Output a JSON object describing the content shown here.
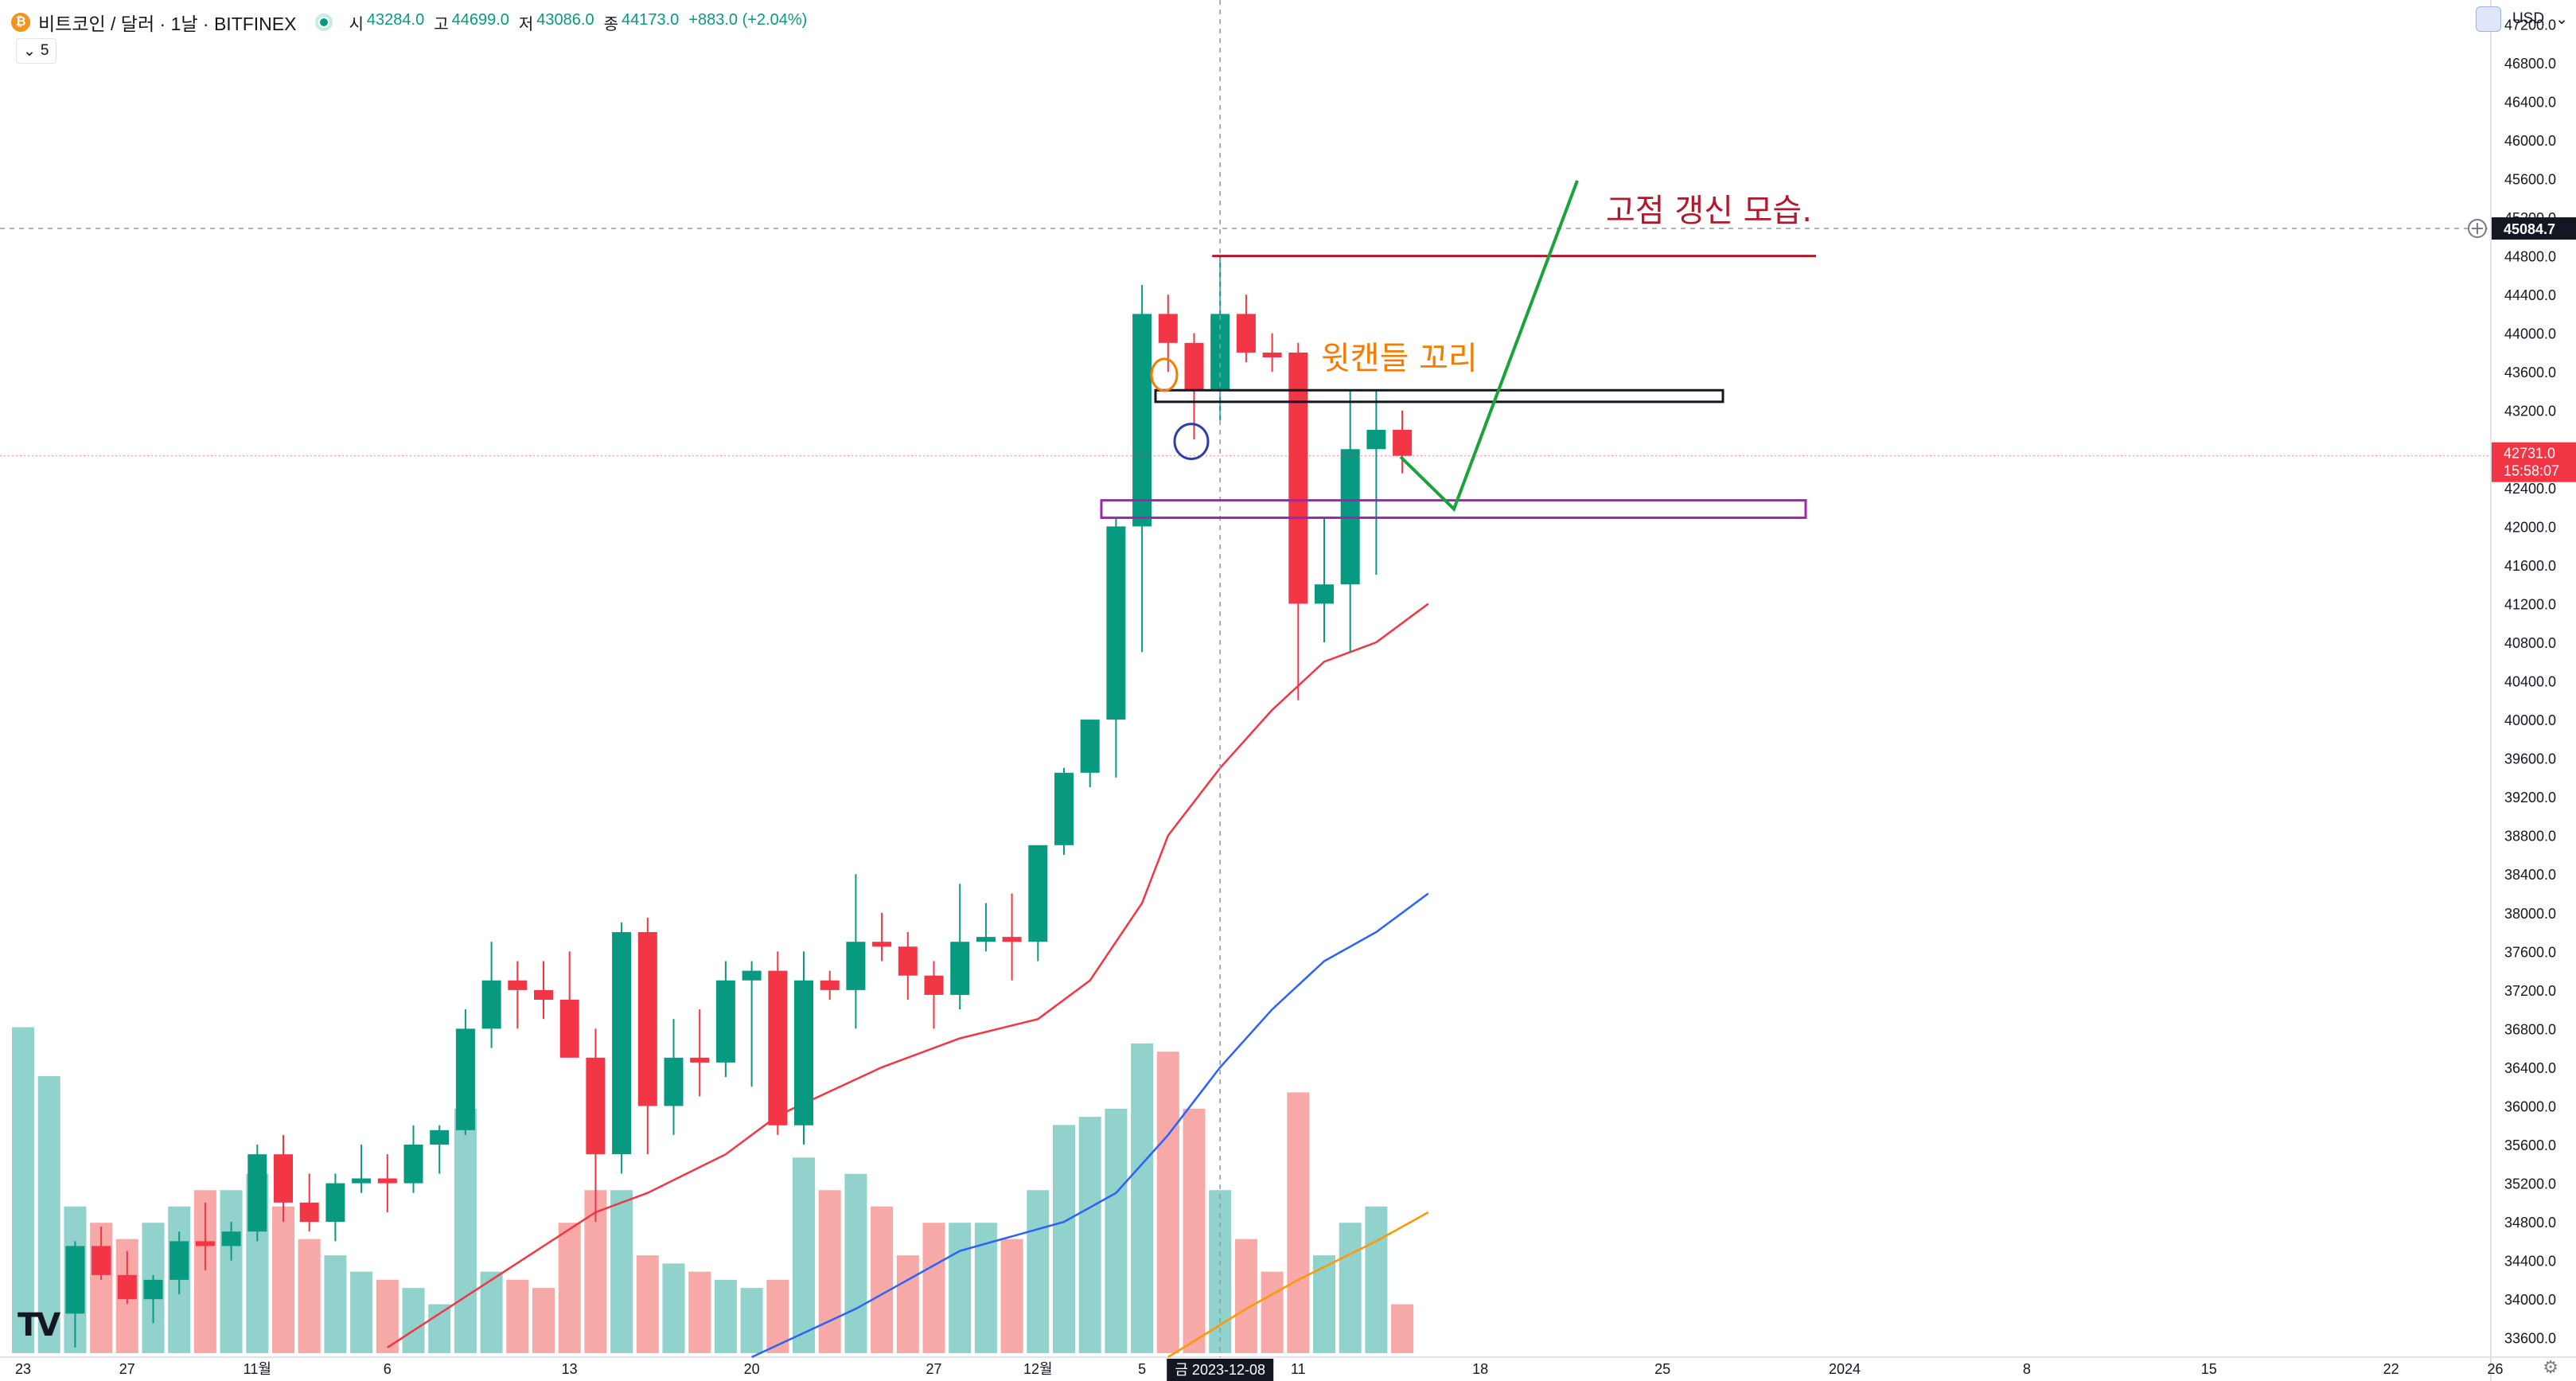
{
  "header": {
    "symbol": "비트코인 / 달러 · 1날 · BITFINEX",
    "coin_glyph": "₿",
    "ohlc": [
      {
        "label": "시",
        "value": "43284.0"
      },
      {
        "label": "고",
        "value": "44699.0"
      },
      {
        "label": "저",
        "value": "43086.0"
      },
      {
        "label": "종",
        "value": "44173.0"
      },
      {
        "label": "",
        "value": "+883.0 (+2.04%)"
      }
    ],
    "collapse_label": "5",
    "currency": "USD"
  },
  "colors": {
    "up": "#089981",
    "down": "#f23645",
    "vol_up": "#92d2cc",
    "vol_down": "#f7a9a7",
    "ma_red": "#f23645",
    "ma_blue": "#2962ff",
    "ma_orange": "#ff9800",
    "annot_darkred": "#b2182b",
    "annot_orange": "#f57c00",
    "annot_green": "#1aa33a",
    "annot_purple": "#9c27b0",
    "annot_blue": "#2f3fa8"
  },
  "chart_data": {
    "type": "candlestick",
    "y_ticks": [
      "47200.0",
      "46800.0",
      "46400.0",
      "46000.0",
      "45600.0",
      "45200.0",
      "44800.0",
      "44400.0",
      "44000.0",
      "43600.0",
      "43200.0",
      "42800.0",
      "42400.0",
      "42000.0",
      "41600.0",
      "41200.0",
      "40800.0",
      "40400.0",
      "40000.0",
      "39600.0",
      "39200.0",
      "38800.0",
      "38400.0",
      "38000.0",
      "37600.0",
      "37200.0",
      "36800.0",
      "36400.0",
      "36000.0",
      "35600.0",
      "35200.0",
      "34800.0",
      "34400.0",
      "34000.0",
      "33600.0"
    ],
    "ylim": [
      33400,
      47450
    ],
    "x_ticks": [
      {
        "i": 0,
        "label": "23"
      },
      {
        "i": 4,
        "label": "27"
      },
      {
        "i": 9,
        "label": "11월"
      },
      {
        "i": 14,
        "label": "6"
      },
      {
        "i": 21,
        "label": "13"
      },
      {
        "i": 28,
        "label": "20"
      },
      {
        "i": 35,
        "label": "27"
      },
      {
        "i": 39,
        "label": "12월"
      },
      {
        "i": 43,
        "label": "5"
      },
      {
        "i": 49,
        "label": "11"
      },
      {
        "i": 56,
        "label": "18"
      },
      {
        "i": 63,
        "label": "25"
      },
      {
        "i": 70,
        "label": "2024"
      },
      {
        "i": 77,
        "label": "8"
      },
      {
        "i": 84,
        "label": "15"
      },
      {
        "i": 91,
        "label": "22"
      },
      {
        "i": 95,
        "label": "26"
      }
    ],
    "crosshair": {
      "i": 46,
      "date_label": "금  2023-12-08",
      "price": 45084.7,
      "price_label": "45084.7"
    },
    "last_price": {
      "price": 42731.0,
      "label": "42731.0",
      "countdown": "15:58:07"
    },
    "candles": [
      [
        null,
        null,
        null,
        null
      ],
      [
        null,
        null,
        null,
        null
      ],
      [
        33850,
        34600,
        33500,
        34550
      ],
      [
        34550,
        34750,
        34200,
        34250
      ],
      [
        34250,
        34500,
        33950,
        34000
      ],
      [
        34000,
        34250,
        33750,
        34200
      ],
      [
        34200,
        34700,
        34050,
        34600
      ],
      [
        34600,
        35000,
        34300,
        34550
      ],
      [
        34550,
        34800,
        34400,
        34700
      ],
      [
        34700,
        35600,
        34600,
        35500
      ],
      [
        35500,
        35700,
        34800,
        35000
      ],
      [
        35000,
        35300,
        34700,
        34800
      ],
      [
        34800,
        35300,
        34600,
        35200
      ],
      [
        35200,
        35600,
        35100,
        35250
      ],
      [
        35250,
        35500,
        34900,
        35200
      ],
      [
        35200,
        35800,
        35100,
        35600
      ],
      [
        35600,
        35800,
        35300,
        35750
      ],
      [
        35750,
        37000,
        35700,
        36800
      ],
      [
        36800,
        37700,
        36600,
        37300
      ],
      [
        37300,
        37500,
        36800,
        37200
      ],
      [
        37200,
        37500,
        36900,
        37100
      ],
      [
        37100,
        37600,
        36500,
        36500
      ],
      [
        36500,
        36800,
        34800,
        35500
      ],
      [
        35500,
        37900,
        35300,
        37800
      ],
      [
        37800,
        37950,
        35500,
        36000
      ],
      [
        36000,
        36900,
        35700,
        36500
      ],
      [
        36500,
        37000,
        36100,
        36450
      ],
      [
        36450,
        37500,
        36300,
        37300
      ],
      [
        37300,
        37500,
        36200,
        37400
      ],
      [
        37400,
        37600,
        35700,
        35800
      ],
      [
        35800,
        37600,
        35600,
        37300
      ],
      [
        37300,
        37400,
        37100,
        37200
      ],
      [
        37200,
        38400,
        36800,
        37700
      ],
      [
        37700,
        38000,
        37500,
        37650
      ],
      [
        37650,
        37800,
        37100,
        37350
      ],
      [
        37350,
        37500,
        36800,
        37150
      ],
      [
        37150,
        38300,
        37000,
        37700
      ],
      [
        37700,
        38100,
        37600,
        37750
      ],
      [
        37750,
        38200,
        37300,
        37700
      ],
      [
        37700,
        38700,
        37500,
        38700
      ],
      [
        38700,
        39500,
        38600,
        39450
      ],
      [
        39450,
        40000,
        39300,
        40000
      ],
      [
        40000,
        42100,
        39400,
        42000
      ],
      [
        42000,
        44500,
        40700,
        44200
      ],
      [
        44200,
        44400,
        43600,
        43900
      ],
      [
        43900,
        44000,
        42900,
        43400
      ],
      [
        43400,
        44800,
        43100,
        44200
      ],
      [
        44200,
        44400,
        43700,
        43800
      ],
      [
        43800,
        44000,
        43600,
        43750
      ],
      [
        43800,
        43900,
        40200,
        41200
      ],
      [
        41200,
        42100,
        40800,
        41400
      ],
      [
        41400,
        43400,
        40700,
        42800
      ],
      [
        42800,
        43400,
        41500,
        43000
      ],
      [
        43000,
        43200,
        42550,
        42731
      ]
    ],
    "volumes": [
      2000,
      1700,
      900,
      800,
      700,
      800,
      900,
      1000,
      1000,
      1100,
      900,
      700,
      600,
      500,
      450,
      400,
      300,
      1500,
      500,
      450,
      400,
      800,
      1000,
      1000,
      600,
      550,
      500,
      450,
      400,
      450,
      1200,
      1000,
      1100,
      900,
      600,
      800,
      800,
      800,
      700,
      1000,
      1400,
      1450,
      1500,
      1900,
      1850,
      1500,
      1000,
      700,
      500,
      1600,
      600,
      800,
      900,
      300
    ],
    "volume_scale_max": 2100,
    "ma_red": [
      [
        14,
        33500
      ],
      [
        18,
        34200
      ],
      [
        22,
        34900
      ],
      [
        24,
        35100
      ],
      [
        27,
        35500
      ],
      [
        29,
        35900
      ],
      [
        33,
        36400
      ],
      [
        36,
        36700
      ],
      [
        39,
        36900
      ],
      [
        41,
        37300
      ],
      [
        43,
        38100
      ],
      [
        44,
        38800
      ],
      [
        46,
        39500
      ],
      [
        48,
        40100
      ],
      [
        50,
        40600
      ],
      [
        52,
        40800
      ],
      [
        54,
        41200
      ]
    ],
    "ma_blue": [
      [
        28,
        33400
      ],
      [
        32,
        33900
      ],
      [
        36,
        34500
      ],
      [
        40,
        34800
      ],
      [
        42,
        35100
      ],
      [
        44,
        35700
      ],
      [
        46,
        36400
      ],
      [
        48,
        37000
      ],
      [
        50,
        37500
      ],
      [
        52,
        37800
      ],
      [
        54,
        38200
      ]
    ],
    "ma_orange": [
      [
        44,
        33400
      ],
      [
        47,
        33900
      ],
      [
        49,
        34200
      ],
      [
        52,
        34600
      ],
      [
        54,
        34900
      ]
    ],
    "series": [
      {
        "name": "",
        "type": "candles"
      },
      {
        "name": "",
        "type": "volume"
      }
    ]
  },
  "annotations": {
    "top_text": "고점 갱신 모습.",
    "wick_text": "윗캔들 꼬리"
  }
}
